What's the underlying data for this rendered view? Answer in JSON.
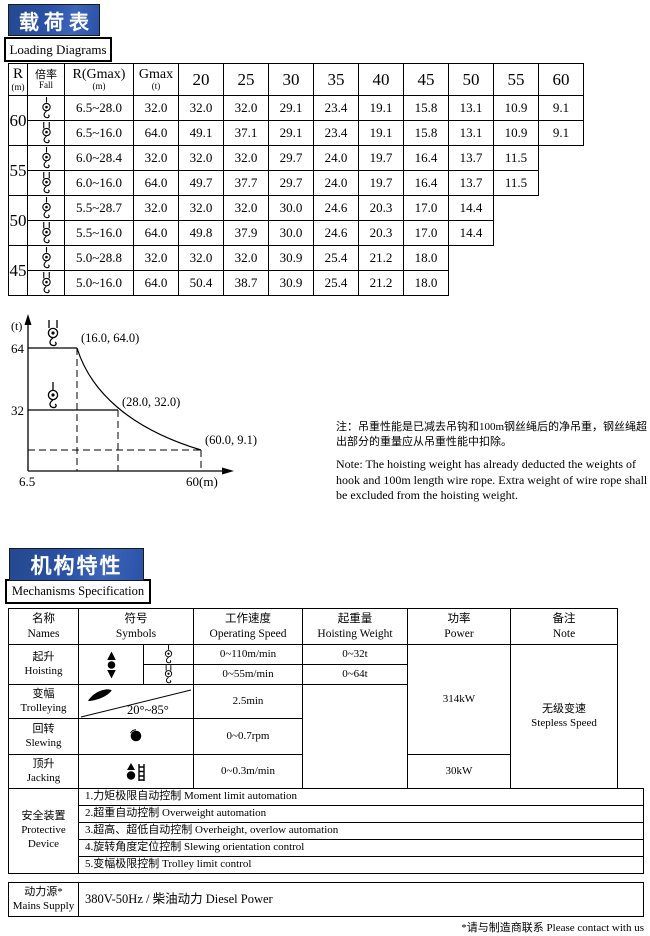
{
  "colors": {
    "header_blue": "#2a52a8",
    "border": "#000000",
    "text": "#000000"
  },
  "section1": {
    "title_cn": "载荷表",
    "title_en": "Loading Diagrams"
  },
  "loading_table": {
    "header": {
      "r": "R",
      "r_unit": "(m)",
      "fall_cn": "倍率",
      "fall_en": "Fall",
      "rgmax": "R(Gmax)",
      "rgmax_unit": "(m)",
      "gmax": "Gmax",
      "gmax_unit": "(t)",
      "radii": [
        "20",
        "25",
        "30",
        "35",
        "40",
        "45",
        "50",
        "55",
        "60"
      ]
    },
    "rows": [
      {
        "r": "60",
        "falls": [
          {
            "fall": "single",
            "range": "6.5~28.0",
            "gmax": "32.0",
            "values": [
              "32.0",
              "32.0",
              "29.1",
              "23.4",
              "19.1",
              "15.8",
              "13.1",
              "10.9",
              "9.1"
            ]
          },
          {
            "fall": "double",
            "range": "6.5~16.0",
            "gmax": "64.0",
            "values": [
              "49.1",
              "37.1",
              "29.1",
              "23.4",
              "19.1",
              "15.8",
              "13.1",
              "10.9",
              "9.1"
            ]
          }
        ]
      },
      {
        "r": "55",
        "falls": [
          {
            "fall": "single",
            "range": "6.0~28.4",
            "gmax": "32.0",
            "values": [
              "32.0",
              "32.0",
              "29.7",
              "24.0",
              "19.7",
              "16.4",
              "13.7",
              "11.5"
            ]
          },
          {
            "fall": "double",
            "range": "6.0~16.0",
            "gmax": "64.0",
            "values": [
              "49.7",
              "37.7",
              "29.7",
              "24.0",
              "19.7",
              "16.4",
              "13.7",
              "11.5"
            ]
          }
        ]
      },
      {
        "r": "50",
        "falls": [
          {
            "fall": "single",
            "range": "5.5~28.7",
            "gmax": "32.0",
            "values": [
              "32.0",
              "32.0",
              "30.0",
              "24.6",
              "20.3",
              "17.0",
              "14.4"
            ]
          },
          {
            "fall": "double",
            "range": "5.5~16.0",
            "gmax": "64.0",
            "values": [
              "49.8",
              "37.9",
              "30.0",
              "24.6",
              "20.3",
              "17.0",
              "14.4"
            ]
          }
        ]
      },
      {
        "r": "45",
        "falls": [
          {
            "fall": "single",
            "range": "5.0~28.8",
            "gmax": "32.0",
            "values": [
              "32.0",
              "32.0",
              "30.9",
              "25.4",
              "21.2",
              "18.0"
            ]
          },
          {
            "fall": "double",
            "range": "5.0~16.0",
            "gmax": "64.0",
            "values": [
              "50.4",
              "38.7",
              "30.9",
              "25.4",
              "21.2",
              "18.0"
            ]
          }
        ]
      }
    ]
  },
  "chart_data": {
    "type": "line",
    "ylabel": "(t)",
    "xlabel": "(m)",
    "y_ticks": [
      "64",
      "32"
    ],
    "x_tick_left": "6.5",
    "x_tick_right": "60(m)",
    "x_range": [
      6.5,
      60
    ],
    "y_range": [
      0,
      70
    ],
    "series": [
      {
        "name": "2-fall curve",
        "points": [
          {
            "x": 6.5,
            "y": 64.0
          },
          {
            "x": 16.0,
            "y": 64.0
          },
          {
            "x": 28.0,
            "y": 32.0
          },
          {
            "x": 60.0,
            "y": 9.1
          }
        ]
      },
      {
        "name": "single-fall line",
        "points": [
          {
            "x": 6.5,
            "y": 32.0
          },
          {
            "x": 28.0,
            "y": 32.0
          }
        ]
      }
    ],
    "point_labels": [
      "(16.0, 64.0)",
      "(28.0, 32.0)",
      "(60.0, 9.1)"
    ],
    "grid": false,
    "legend": "none"
  },
  "notes": {
    "cn": "注：吊重性能是已减去吊钩和100m钢丝绳后的净吊重，钢丝绳超出部分的重量应从吊重性能中扣除。",
    "en": "Note: The hoisting weight has already deducted the weights of hook and 100m length wire rope. Extra weight of wire rope shall be excluded from the hoisting weight."
  },
  "section2": {
    "title_cn": "机构特性",
    "title_en": "Mechanisms Specification"
  },
  "mech": {
    "headers": {
      "names_cn": "名称",
      "names_en": "Names",
      "symbols_cn": "符号",
      "symbols_en": "Symbols",
      "speed_cn": "工作速度",
      "speed_en": "Operating Speed",
      "weight_cn": "起重量",
      "weight_en": "Hoisting Weight",
      "power_cn": "功率",
      "power_en": "Power",
      "note_cn": "备注",
      "note_en": "Note"
    },
    "hoisting": {
      "cn": "起升",
      "en": "Hoisting",
      "speed1": "0~110m/min",
      "speed2": "0~55m/min",
      "weight1": "0~32t",
      "weight2": "0~64t"
    },
    "trolleying": {
      "cn": "变幅",
      "en": "Trolleying",
      "angle": "20°~85°",
      "speed": "2.5min"
    },
    "slewing": {
      "cn": "回转",
      "en": "Slewing",
      "speed": "0~0.7rpm"
    },
    "jacking": {
      "cn": "顶升",
      "en": "Jacking",
      "speed": "0~0.3m/min",
      "power": "30kW"
    },
    "power_main": "314kW",
    "note_cn": "无级变速",
    "note_en": "Stepless Speed"
  },
  "safety": {
    "cn": "安全装置",
    "en1": "Protective",
    "en2": "Device",
    "items": [
      "1.力矩极限自动控制  Moment limit automation",
      "2.超重自动控制  Overweight automation",
      "3.超高、超低自动控制  Overheight, overlow automation",
      "4.旋转角度定位控制  Slewing orientation control",
      "5.变幅极限控制  Trolley limit control"
    ]
  },
  "mains": {
    "cn": "动力源*",
    "en": "Mains Supply",
    "value": "380V-50Hz / 柴油动力  Diesel Power"
  },
  "footer": "*请与制造商联系  Please contact with us"
}
